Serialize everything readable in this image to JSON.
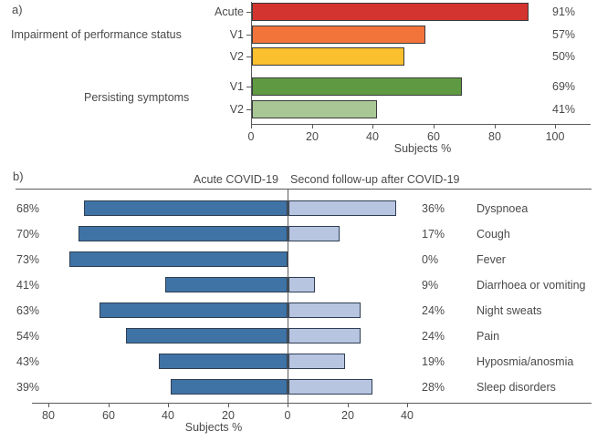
{
  "panel_a": {
    "panel_label": "a)",
    "group_labels": [
      "Impairment of performance status",
      "Persisting symptoms"
    ],
    "y_labels": [
      "Acute",
      "V1",
      "V2",
      "V1",
      "V2"
    ],
    "value_labels": [
      "91%",
      "57%",
      "50%",
      "69%",
      "41%"
    ],
    "bar_colors": [
      "#d3342f",
      "#f2743b",
      "#fbc02d",
      "#5f9a42",
      "#a9c795"
    ],
    "x_tick_labels": [
      "0",
      "20",
      "40",
      "60",
      "80",
      "100"
    ],
    "xlabel": "Subjects %"
  },
  "panel_b": {
    "panel_label": "b)",
    "left_header": "Acute COVID-19",
    "right_header": "Second follow-up after COVID-19",
    "left_value_labels": [
      "68%",
      "70%",
      "73%",
      "41%",
      "63%",
      "54%",
      "43%",
      "39%"
    ],
    "right_value_labels": [
      "36%",
      "17%",
      "0%",
      "9%",
      "24%",
      "24%",
      "19%",
      "28%"
    ],
    "symptom_labels": [
      "Dyspnoea",
      "Cough",
      "Fever",
      "Diarrhoea or vomiting",
      "Night sweats",
      "Pain",
      "Hyposmia/anosmia",
      "Sleep disorders"
    ],
    "x_tick_labels": [
      "80",
      "60",
      "40",
      "20",
      "0",
      "20",
      "40"
    ],
    "xlabel": "Subjects %",
    "colors": {
      "acute_bar": "#3f73a5",
      "followup_bar": "#b7c5e1"
    }
  },
  "chart_data": [
    {
      "type": "bar",
      "panel": "a",
      "orientation": "horizontal",
      "unit": "%",
      "groups": [
        {
          "label": "Impairment of performance status",
          "bars": [
            {
              "category": "Acute",
              "value": 91
            },
            {
              "category": "V1",
              "value": 57
            },
            {
              "category": "V2",
              "value": 50
            }
          ]
        },
        {
          "label": "Persisting symptoms",
          "bars": [
            {
              "category": "V1",
              "value": 69
            },
            {
              "category": "V2",
              "value": 41
            }
          ]
        }
      ],
      "xlabel": "Subjects %",
      "xlim": [
        0,
        100
      ],
      "x_ticks": [
        0,
        20,
        40,
        60,
        80,
        100
      ]
    },
    {
      "type": "bar",
      "panel": "b",
      "subtype": "diverging-horizontal",
      "unit": "%",
      "categories": [
        "Dyspnoea",
        "Cough",
        "Fever",
        "Diarrhoea or vomiting",
        "Night sweats",
        "Pain",
        "Hyposmia/anosmia",
        "Sleep disorders"
      ],
      "series": [
        {
          "name": "Acute COVID-19",
          "side": "left",
          "values": [
            68,
            70,
            73,
            41,
            63,
            54,
            43,
            39
          ]
        },
        {
          "name": "Second follow-up after COVID-19",
          "side": "right",
          "values": [
            36,
            17,
            0,
            9,
            24,
            24,
            19,
            28
          ]
        }
      ],
      "xlabel": "Subjects %",
      "x_ticks": [
        80,
        60,
        40,
        20,
        0,
        20,
        40
      ]
    }
  ]
}
